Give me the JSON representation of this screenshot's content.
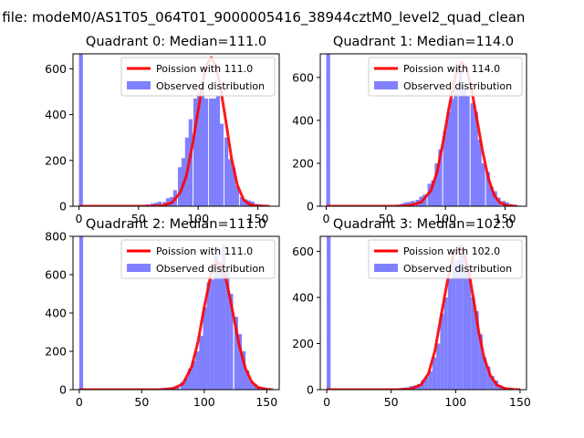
{
  "figure": {
    "suptitle": "n file: modeM0/AS1T05_064T01_9000005416_38944cztM0_level2_quad_clean"
  },
  "legend": {
    "observed_label": "Observed distribution",
    "poisson_color": "#ff0000",
    "observed_color": "#8080ff"
  },
  "chart_data": [
    {
      "type": "bar",
      "title": "Quadrant 0: Median=111.0",
      "poisson_label": "Poission with 111.0",
      "median": 111.0,
      "xlim": [
        -5,
        168
      ],
      "ylim": [
        0,
        665
      ],
      "xticks": [
        0,
        50,
        100,
        150
      ],
      "yticks": [
        0,
        200,
        400,
        600
      ],
      "zero_bar": 665,
      "bin_width": 3.3,
      "histogram": [
        [
          56,
          8
        ],
        [
          60,
          12
        ],
        [
          63,
          15
        ],
        [
          66,
          20
        ],
        [
          70,
          18
        ],
        [
          73,
          35
        ],
        [
          76,
          40
        ],
        [
          79,
          70
        ],
        [
          83,
          170
        ],
        [
          86,
          210
        ],
        [
          89,
          300
        ],
        [
          92,
          380
        ],
        [
          96,
          470
        ],
        [
          99,
          495
        ],
        [
          102,
          545
        ],
        [
          105,
          470
        ],
        [
          109,
          470
        ],
        [
          112,
          470
        ],
        [
          115,
          480
        ],
        [
          118,
          360
        ],
        [
          122,
          300
        ],
        [
          125,
          205
        ],
        [
          128,
          170
        ],
        [
          131,
          90
        ],
        [
          135,
          40
        ],
        [
          138,
          30
        ],
        [
          141,
          25
        ],
        [
          144,
          20
        ],
        [
          148,
          10
        ],
        [
          151,
          8
        ],
        [
          154,
          5
        ],
        [
          157,
          3
        ]
      ],
      "poisson": [
        [
          0,
          0
        ],
        [
          60,
          0
        ],
        [
          70,
          3
        ],
        [
          78,
          15
        ],
        [
          85,
          60
        ],
        [
          90,
          130
        ],
        [
          95,
          260
        ],
        [
          100,
          420
        ],
        [
          105,
          570
        ],
        [
          108,
          625
        ],
        [
          111,
          650
        ],
        [
          114,
          620
        ],
        [
          118,
          540
        ],
        [
          123,
          380
        ],
        [
          128,
          210
        ],
        [
          133,
          90
        ],
        [
          138,
          30
        ],
        [
          143,
          8
        ],
        [
          150,
          1
        ],
        [
          160,
          0
        ]
      ]
    },
    {
      "type": "bar",
      "title": "Quadrant 1: Median=114.0",
      "poisson_label": "Poission with 114.0",
      "median": 114.0,
      "xlim": [
        -5,
        168
      ],
      "ylim": [
        0,
        710
      ],
      "xticks": [
        0,
        50,
        100,
        150
      ],
      "yticks": [
        0,
        200,
        400,
        600
      ],
      "zero_bar": 710,
      "bin_width": 3.3,
      "histogram": [
        [
          58,
          8
        ],
        [
          62,
          12
        ],
        [
          65,
          18
        ],
        [
          68,
          20
        ],
        [
          71,
          25
        ],
        [
          75,
          30
        ],
        [
          78,
          45
        ],
        [
          81,
          55
        ],
        [
          85,
          105
        ],
        [
          88,
          120
        ],
        [
          91,
          200
        ],
        [
          94,
          265
        ],
        [
          98,
          350
        ],
        [
          101,
          440
        ],
        [
          104,
          500
        ],
        [
          107,
          555
        ],
        [
          111,
          640
        ],
        [
          114,
          560
        ],
        [
          117,
          515
        ],
        [
          121,
          480
        ],
        [
          124,
          440
        ],
        [
          127,
          310
        ],
        [
          130,
          200
        ],
        [
          134,
          160
        ],
        [
          137,
          90
        ],
        [
          140,
          70
        ],
        [
          143,
          40
        ],
        [
          147,
          25
        ],
        [
          150,
          18
        ],
        [
          153,
          10
        ],
        [
          157,
          6
        ],
        [
          160,
          3
        ]
      ],
      "poisson": [
        [
          0,
          0
        ],
        [
          60,
          0
        ],
        [
          70,
          3
        ],
        [
          80,
          20
        ],
        [
          88,
          75
        ],
        [
          93,
          160
        ],
        [
          98,
          300
        ],
        [
          103,
          460
        ],
        [
          108,
          600
        ],
        [
          111,
          650
        ],
        [
          114,
          670
        ],
        [
          117,
          650
        ],
        [
          121,
          570
        ],
        [
          126,
          420
        ],
        [
          131,
          260
        ],
        [
          136,
          130
        ],
        [
          141,
          50
        ],
        [
          146,
          15
        ],
        [
          152,
          3
        ],
        [
          160,
          0
        ]
      ]
    },
    {
      "type": "bar",
      "title": "Quadrant 2: Median=111.0",
      "poisson_label": "Poission with 111.0",
      "median": 111.0,
      "xlim": [
        -5,
        160
      ],
      "ylim": [
        0,
        800
      ],
      "xticks": [
        0,
        50,
        100,
        150
      ],
      "yticks": [
        0,
        200,
        400,
        600,
        800
      ],
      "zero_bar": 800,
      "bin_width": 3.1,
      "histogram": [
        [
          62,
          5
        ],
        [
          65,
          8
        ],
        [
          68,
          10
        ],
        [
          71,
          12
        ],
        [
          74,
          15
        ],
        [
          77,
          20
        ],
        [
          81,
          40
        ],
        [
          84,
          60
        ],
        [
          87,
          110
        ],
        [
          90,
          150
        ],
        [
          93,
          200
        ],
        [
          96,
          280
        ],
        [
          99,
          430
        ],
        [
          102,
          560
        ],
        [
          105,
          575
        ],
        [
          108,
          700
        ],
        [
          111,
          650
        ],
        [
          114,
          760
        ],
        [
          117,
          620
        ],
        [
          120,
          500
        ],
        [
          124,
          380
        ],
        [
          127,
          290
        ],
        [
          130,
          200
        ],
        [
          133,
          100
        ],
        [
          136,
          45
        ],
        [
          139,
          30
        ],
        [
          142,
          15
        ],
        [
          146,
          10
        ],
        [
          149,
          5
        ]
      ],
      "poisson": [
        [
          0,
          0
        ],
        [
          65,
          0
        ],
        [
          75,
          5
        ],
        [
          83,
          30
        ],
        [
          90,
          120
        ],
        [
          95,
          250
        ],
        [
          100,
          430
        ],
        [
          105,
          590
        ],
        [
          108,
          650
        ],
        [
          111,
          665
        ],
        [
          114,
          650
        ],
        [
          118,
          560
        ],
        [
          123,
          400
        ],
        [
          128,
          230
        ],
        [
          133,
          110
        ],
        [
          138,
          40
        ],
        [
          143,
          12
        ],
        [
          150,
          2
        ],
        [
          155,
          0
        ]
      ]
    },
    {
      "type": "bar",
      "title": "Quadrant 3: Median=102.0",
      "poisson_label": "Poission with 102.0",
      "median": 102.0,
      "xlim": [
        -5,
        155
      ],
      "ylim": [
        0,
        665
      ],
      "xticks": [
        0,
        50,
        100,
        150
      ],
      "yticks": [
        0,
        200,
        400,
        600
      ],
      "zero_bar": 665,
      "bin_width": 3.0,
      "histogram": [
        [
          55,
          5
        ],
        [
          58,
          8
        ],
        [
          61,
          10
        ],
        [
          64,
          15
        ],
        [
          67,
          18
        ],
        [
          70,
          25
        ],
        [
          73,
          40
        ],
        [
          76,
          55
        ],
        [
          79,
          80
        ],
        [
          82,
          140
        ],
        [
          85,
          200
        ],
        [
          88,
          330
        ],
        [
          91,
          400
        ],
        [
          94,
          480
        ],
        [
          97,
          560
        ],
        [
          100,
          560
        ],
        [
          103,
          630
        ],
        [
          106,
          580
        ],
        [
          109,
          520
        ],
        [
          112,
          400
        ],
        [
          115,
          340
        ],
        [
          118,
          240
        ],
        [
          121,
          140
        ],
        [
          124,
          100
        ],
        [
          127,
          60
        ],
        [
          130,
          40
        ],
        [
          133,
          20
        ],
        [
          136,
          12
        ],
        [
          139,
          6
        ],
        [
          142,
          4
        ],
        [
          145,
          2
        ]
      ],
      "poisson": [
        [
          0,
          0
        ],
        [
          55,
          0
        ],
        [
          65,
          3
        ],
        [
          73,
          20
        ],
        [
          79,
          70
        ],
        [
          84,
          170
        ],
        [
          89,
          330
        ],
        [
          94,
          480
        ],
        [
          98,
          580
        ],
        [
          102,
          620
        ],
        [
          106,
          600
        ],
        [
          110,
          520
        ],
        [
          114,
          390
        ],
        [
          118,
          250
        ],
        [
          122,
          140
        ],
        [
          127,
          60
        ],
        [
          132,
          20
        ],
        [
          138,
          5
        ],
        [
          145,
          1
        ],
        [
          150,
          0
        ]
      ]
    }
  ]
}
